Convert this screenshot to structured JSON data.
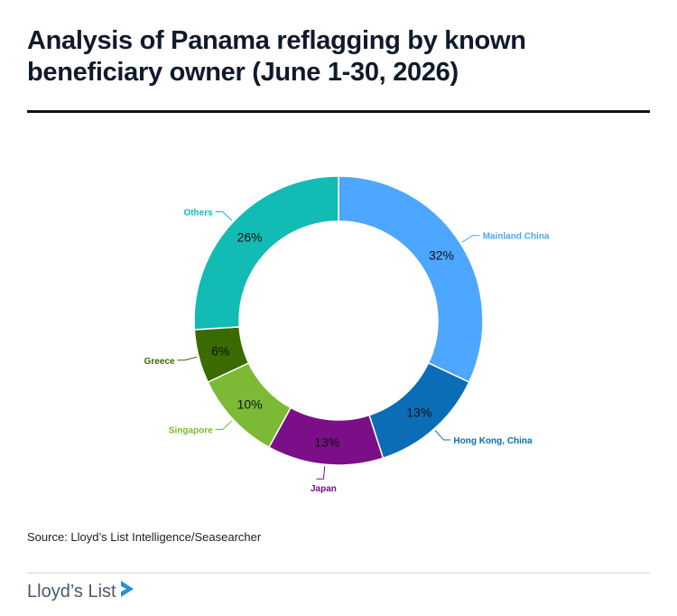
{
  "header": {
    "title": "Analysis of Panama reflagging by known beneficiary owner (June 1-30, 2026)"
  },
  "chart_data": {
    "type": "pie",
    "donut": true,
    "legend": "none",
    "slices": [
      {
        "label": "Mainland China",
        "value": 32,
        "display": "32%",
        "color": "#4da6ff"
      },
      {
        "label": "Hong Kong, China",
        "value": 13,
        "display": "13%",
        "color": "#0a6db5"
      },
      {
        "label": "Japan",
        "value": 13,
        "display": "13%",
        "color": "#7a0f87"
      },
      {
        "label": "Singapore",
        "value": 10,
        "display": "10%",
        "color": "#7cb935"
      },
      {
        "label": "Greece",
        "value": 6,
        "display": "6%",
        "color": "#3a6a00"
      },
      {
        "label": "Others",
        "value": 26,
        "display": "26%",
        "color": "#12bbb4"
      }
    ]
  },
  "footer": {
    "source": "Source: Lloyd’s List Intelligence/Seasearcher",
    "logo_text": "Lloyd’s List"
  },
  "colors": {
    "logo_mark": "#2a8fd6"
  }
}
